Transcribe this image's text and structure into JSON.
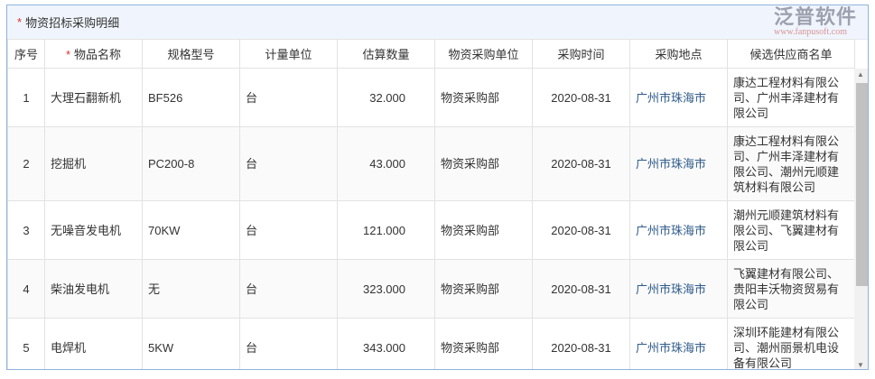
{
  "section": {
    "title": "物资招标采购明细",
    "required_mark": "*"
  },
  "columns": [
    "序号",
    "物品名称",
    "规格型号",
    "计量单位",
    "估算数量",
    "物资采购单位",
    "采购时间",
    "采购地点",
    "候选供应商名单"
  ],
  "rows": [
    {
      "no": "1",
      "name": "大理石翻新机",
      "spec": "BF526",
      "unit": "台",
      "qty": "32.000",
      "dept": "物资采购部",
      "date": "2020-08-31",
      "place": "广州市珠海市",
      "suppliers": "康达工程材料有限公司、广州丰泽建材有限公司"
    },
    {
      "no": "2",
      "name": "挖掘机",
      "spec": "PC200-8",
      "unit": "台",
      "qty": "43.000",
      "dept": "物资采购部",
      "date": "2020-08-31",
      "place": "广州市珠海市",
      "suppliers": "康达工程材料有限公司、广州丰泽建材有限公司、潮州元顺建筑材料有限公司"
    },
    {
      "no": "3",
      "name": "无噪音发电机",
      "spec": "70KW",
      "unit": "台",
      "qty": "121.000",
      "dept": "物资采购部",
      "date": "2020-08-31",
      "place": "广州市珠海市",
      "suppliers": "潮州元顺建筑材料有限公司、飞翼建材有限公司"
    },
    {
      "no": "4",
      "name": "柴油发电机",
      "spec": "无",
      "unit": "台",
      "qty": "323.000",
      "dept": "物资采购部",
      "date": "2020-08-31",
      "place": "广州市珠海市",
      "suppliers": "飞翼建材有限公司、贵阳丰沃物资贸易有限公司"
    },
    {
      "no": "5",
      "name": "电焊机",
      "spec": "5KW",
      "unit": "台",
      "qty": "343.000",
      "dept": "物资采购部",
      "date": "2020-08-31",
      "place": "广州市珠海市",
      "suppliers": "深圳环能建材有限公司、潮州丽景机电设备有限公司"
    }
  ],
  "watermark": {
    "brand": "泛普软件",
    "url": "www.fanpusoft.com"
  }
}
